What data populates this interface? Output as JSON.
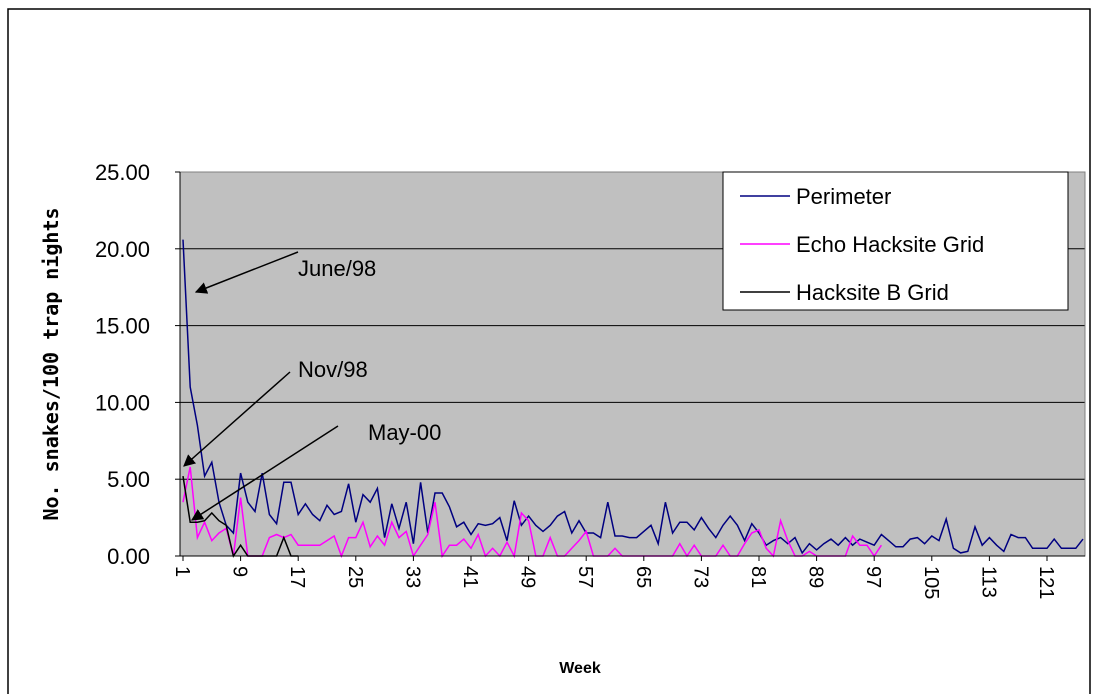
{
  "chart_data": {
    "type": "line",
    "y_label": "No. snakes/100 trap nights",
    "x_label": "Week",
    "categories": [
      "1",
      null,
      null,
      null,
      null,
      null,
      null,
      null,
      "9",
      null,
      null,
      null,
      null,
      null,
      null,
      null,
      "17",
      null,
      null,
      null,
      null,
      null,
      null,
      null,
      "25",
      null,
      null,
      null,
      null,
      null,
      null,
      null,
      "33",
      null,
      null,
      null,
      null,
      null,
      null,
      null,
      "41",
      null,
      null,
      null,
      null,
      null,
      null,
      null,
      "49",
      null,
      null,
      null,
      null,
      null,
      null,
      null,
      "57",
      null,
      null,
      null,
      null,
      null,
      null,
      null,
      "65",
      null,
      null,
      null,
      null,
      null,
      null,
      null,
      "73",
      null,
      null,
      null,
      null,
      null,
      null,
      null,
      "81",
      null,
      null,
      null,
      null,
      null,
      null,
      null,
      "89",
      null,
      null,
      null,
      null,
      null,
      null,
      null,
      "97",
      null,
      null,
      null,
      null,
      null,
      null,
      null,
      "105",
      null,
      null,
      null,
      null,
      null,
      null,
      null,
      "113",
      null,
      null,
      null,
      null,
      null,
      null,
      null,
      "121",
      null,
      null,
      null,
      null,
      null
    ],
    "series": [
      {
        "name": "Perimeter",
        "color": "#000080",
        "values": [
          20.6,
          11,
          8.5,
          5.2,
          6.1,
          3.5,
          2,
          1.5,
          5.4,
          3.5,
          2.9,
          5.4,
          2.7,
          2.1,
          4.8,
          4.8,
          2.7,
          3.4,
          2.7,
          2.3,
          3.3,
          2.7,
          2.9,
          4.7,
          2.2,
          4.0,
          3.5,
          4.4,
          1.2,
          3.4,
          1.8,
          3.5,
          0.8,
          4.8,
          1.5,
          4.1,
          4.1,
          3.2,
          1.9,
          2.2,
          1.4,
          2.1,
          2.0,
          2.1,
          2.5,
          1.0,
          3.6,
          2.0,
          2.6,
          2.0,
          1.6,
          2.0,
          2.6,
          2.9,
          1.5,
          2.3,
          1.5,
          1.5,
          1.2,
          3.5,
          1.3,
          1.3,
          1.2,
          1.2,
          1.6,
          2.0,
          0.8,
          3.5,
          1.5,
          2.2,
          2.2,
          1.7,
          2.5,
          1.8,
          1.2,
          2.0,
          2.6,
          2.0,
          1.0,
          2.1,
          1.5,
          0.7,
          1.0,
          1.2,
          0.8,
          1.2,
          0.2,
          0.8,
          0.4,
          0.8,
          1.1,
          0.7,
          1.2,
          0.7,
          1.1,
          0.9,
          0.7,
          1.4,
          1.0,
          0.6,
          0.6,
          1.1,
          1.2,
          0.8,
          1.3,
          1.0,
          2.4,
          0.5,
          0.2,
          0.3,
          1.9,
          0.7,
          1.2,
          0.7,
          0.3,
          1.4,
          1.2,
          1.2,
          0.5,
          0.5,
          0.5,
          1.1,
          0.5,
          0.5,
          0.5,
          1.1
        ]
      },
      {
        "name": "Echo Hacksite Grid",
        "color": "#ff00ff",
        "values": [
          3.5,
          5.8,
          1.2,
          2.2,
          1.0,
          1.5,
          1.8,
          0,
          3.8,
          0,
          0,
          0,
          1.2,
          1.4,
          1.2,
          1.4,
          0.7,
          0.7,
          0.7,
          0.7,
          1.0,
          1.3,
          0,
          1.2,
          1.2,
          2.2,
          0.6,
          1.3,
          0.7,
          2.2,
          1.2,
          1.6,
          0,
          0.7,
          1.4,
          3.5,
          0,
          0.7,
          0.7,
          1.1,
          0.5,
          1.4,
          0,
          0.5,
          0,
          0.9,
          0,
          2.8,
          2.3,
          0,
          0,
          1.2,
          0,
          0,
          0.5,
          1.0,
          1.6,
          0,
          0,
          0,
          0.5,
          0,
          0,
          0,
          0,
          0,
          0,
          0,
          0,
          0.8,
          0,
          0.7,
          0,
          0,
          0,
          0.7,
          0,
          0,
          0.8,
          1.5,
          1.7,
          0.5,
          0,
          2.3,
          1.0,
          0,
          0,
          0.3,
          0,
          0,
          0,
          0,
          0,
          1.3,
          0.7,
          0.7,
          0,
          0.7,
          null,
          null,
          null,
          null,
          null,
          null,
          null,
          null,
          null,
          null,
          null,
          null,
          null,
          null,
          null,
          null,
          null,
          null,
          null,
          null,
          null,
          null,
          null,
          null,
          null,
          null,
          null,
          null
        ]
      },
      {
        "name": "Hacksite B Grid",
        "color": "#000000",
        "values": [
          5.2,
          2.2,
          2.2,
          2.3,
          2.8,
          2.3,
          2.0,
          0,
          0.7,
          0,
          0,
          0,
          0,
          0,
          1.2,
          0,
          0,
          null,
          null,
          null,
          null,
          null,
          null,
          null,
          null,
          null,
          null,
          null,
          null,
          null,
          null,
          null,
          null,
          null,
          null,
          null,
          null,
          null,
          null,
          null,
          null,
          null,
          null,
          null,
          null,
          null,
          null,
          null,
          null,
          null,
          null,
          null,
          null,
          null,
          null,
          null,
          null,
          null,
          null,
          null,
          null,
          null,
          null,
          null,
          null,
          null,
          null,
          null,
          null,
          null,
          null,
          null,
          null,
          null,
          null,
          null,
          null,
          null,
          null,
          null,
          null,
          null,
          null,
          null,
          null,
          null,
          null,
          null,
          null,
          null,
          null,
          null,
          null,
          null,
          null,
          null,
          null,
          null,
          null,
          null,
          null,
          null,
          null,
          null,
          null,
          null,
          null,
          null,
          null,
          null,
          null,
          null,
          null,
          null,
          null,
          null,
          null,
          null,
          null,
          null,
          null,
          null,
          null,
          null,
          null,
          null
        ]
      }
    ],
    "ylim": [
      0,
      25
    ],
    "yticks": [
      {
        "value": 0,
        "label": "0.00"
      },
      {
        "value": 5,
        "label": "5.00"
      },
      {
        "value": 10,
        "label": "10.00"
      },
      {
        "value": 15,
        "label": "15.00"
      },
      {
        "value": 20,
        "label": "20.00"
      },
      {
        "value": 25,
        "label": "25.00"
      }
    ],
    "grid": true,
    "plot_background": "#c0c0c0",
    "legend_position": "upper right",
    "annotations": [
      "June/98",
      "Nov/98",
      "May-00"
    ]
  }
}
